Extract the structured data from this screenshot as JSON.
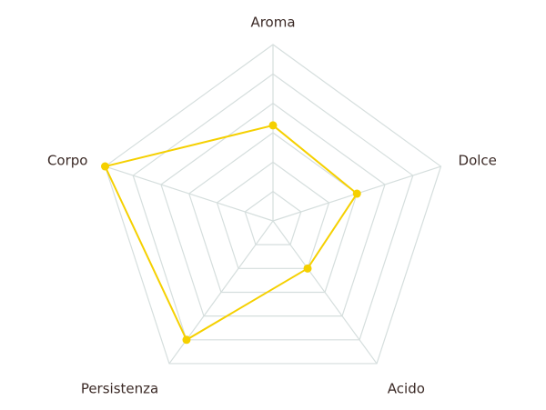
{
  "chart_data": {
    "type": "radar",
    "categories": [
      "Aroma",
      "Dolce",
      "Acido",
      "Persistenza",
      "Corpo"
    ],
    "values": [
      3.25,
      3,
      2,
      5,
      6
    ],
    "color": "#f5d000",
    "rlim": [
      0,
      6
    ],
    "rticks": [
      1,
      2,
      3,
      4,
      5,
      6
    ],
    "grid": true
  }
}
